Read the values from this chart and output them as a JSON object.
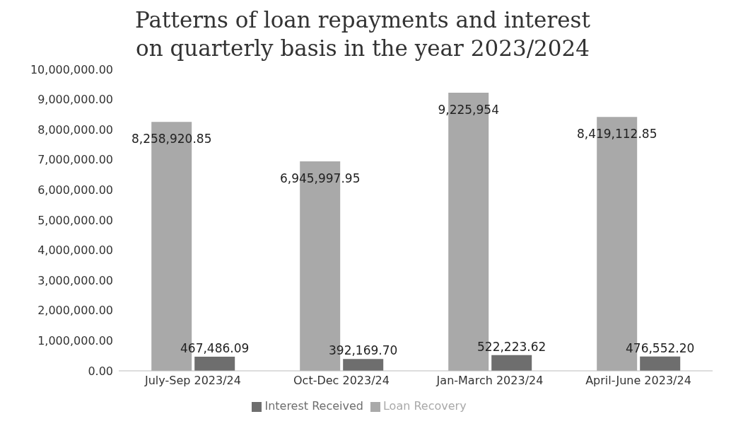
{
  "chart_data": {
    "type": "bar",
    "title": "Patterns of loan repayments and interest\non quarterly basis in the year 2023/2024",
    "categories": [
      "July-Sep 2023/24",
      "Oct-Dec 2023/24",
      "Jan-March 2023/24",
      "April-June 2023/24"
    ],
    "series": [
      {
        "name": "Loan Recovery",
        "color": "#a9a9a9",
        "values": [
          8258920.85,
          6945997.95,
          9225954,
          8419112.85
        ],
        "value_labels": [
          "8,258,920.85",
          "6,945,997.95",
          "9,225,954",
          "8,419,112.85"
        ]
      },
      {
        "name": "Interest Received",
        "color": "#6e6e6e",
        "values": [
          467486.09,
          392169.7,
          522223.62,
          476552.2
        ],
        "value_labels": [
          "467,486.09",
          "392,169.70",
          "522,223.62",
          "476,552.20"
        ]
      }
    ],
    "ylim": [
      0,
      10000000
    ],
    "yticks": [
      {
        "value": 0,
        "label": "0.00"
      },
      {
        "value": 1000000,
        "label": "1,000,000.00"
      },
      {
        "value": 2000000,
        "label": "2,000,000.00"
      },
      {
        "value": 3000000,
        "label": "3,000,000.00"
      },
      {
        "value": 4000000,
        "label": "4,000,000.00"
      },
      {
        "value": 5000000,
        "label": "5,000,000.00"
      },
      {
        "value": 6000000,
        "label": "6,000,000.00"
      },
      {
        "value": 7000000,
        "label": "7,000,000.00"
      },
      {
        "value": 8000000,
        "label": "8,000,000.00"
      },
      {
        "value": 9000000,
        "label": "9,000,000.00"
      },
      {
        "value": 10000000,
        "label": "10,000,000.00"
      }
    ],
    "grid": false,
    "legend": "bottom"
  }
}
